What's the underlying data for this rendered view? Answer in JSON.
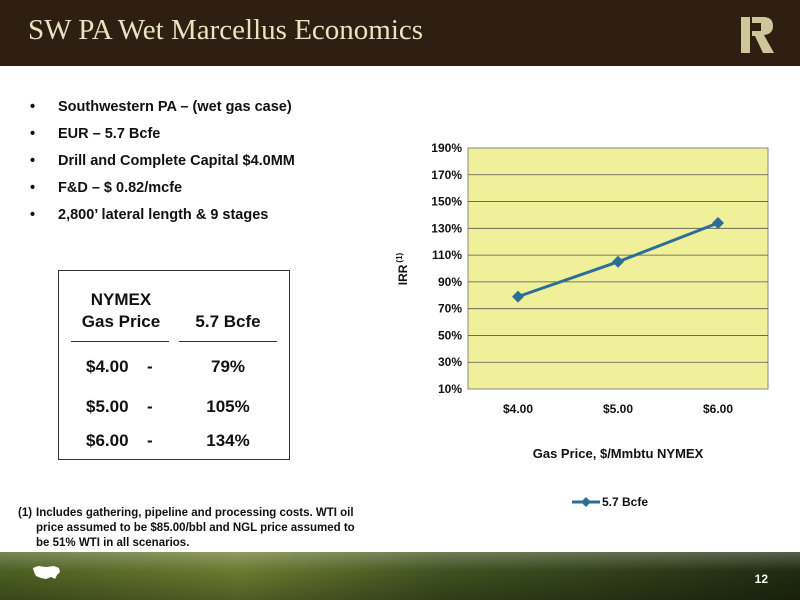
{
  "slide": {
    "title": "SW PA Wet Marcellus Economics",
    "page_number": "12",
    "bullets": [
      "Southwestern PA – (wet gas case)",
      "EUR – 5.7 Bcfe",
      "Drill and Complete Capital $4.0MM",
      "F&D – $ 0.82/mcfe",
      "2,800’ lateral length & 9 stages"
    ],
    "table": {
      "col1_header_line1": "NYMEX",
      "col1_header_line2": "Gas Price",
      "col2_header": "5.7 Bcfe",
      "rows": [
        {
          "price": "$4.00",
          "dash": "-",
          "irr": "79%"
        },
        {
          "price": "$5.00",
          "dash": "-",
          "irr": "105%"
        },
        {
          "price": "$6.00",
          "dash": "-",
          "irr": "134%"
        }
      ]
    },
    "footnote": {
      "number": "(1)",
      "text": "Includes gathering, pipeline and processing costs. WTI oil price assumed to be $85.00/bbl and NGL price assumed to be 51% WTI in all scenarios."
    },
    "colors": {
      "header_bg": "#2e1f12",
      "title_text": "#e8e3c0",
      "plot_bg": "#f0ef9a",
      "series": "#2b6f96"
    }
  },
  "chart_data": {
    "type": "line",
    "categories": [
      "$4.00",
      "$5.00",
      "$6.00"
    ],
    "series": [
      {
        "name": "5.7 Bcfe",
        "values": [
          79,
          105,
          134
        ]
      }
    ],
    "xlabel": "Gas Price, $/Mmbtu NYMEX",
    "ylabel": "IRR",
    "ylabel_superscript": "(1)",
    "ylim": [
      10,
      190
    ],
    "yticks": [
      "10%",
      "30%",
      "50%",
      "70%",
      "90%",
      "110%",
      "130%",
      "150%",
      "170%",
      "190%"
    ],
    "grid": true,
    "legend_position": "bottom"
  }
}
